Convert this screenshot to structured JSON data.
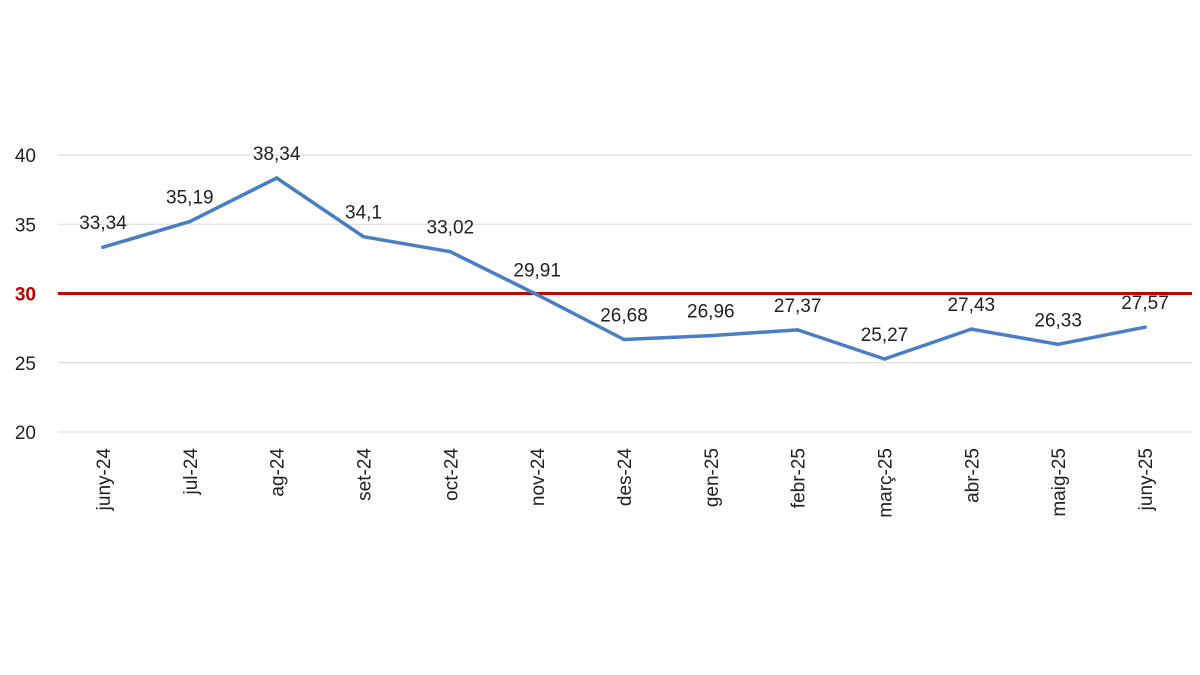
{
  "chart_data": {
    "type": "line",
    "title": "",
    "xlabel": "",
    "ylabel": "",
    "categories": [
      "juny-24",
      "jul-24",
      "ag-24",
      "set-24",
      "oct-24",
      "nov-24",
      "des-24",
      "gen-25",
      "febr-25",
      "març-25",
      "abr-25",
      "maig-25",
      "juny-25"
    ],
    "series": [
      {
        "values": [
          33.34,
          35.19,
          38.34,
          34.1,
          33.02,
          29.91,
          26.68,
          26.96,
          27.37,
          25.27,
          27.43,
          26.33,
          27.57
        ],
        "labels": [
          "33,34",
          "35,19",
          "38,34",
          "34,1",
          "33,02",
          "29,91",
          "26,68",
          "26,96",
          "27,37",
          "25,27",
          "27,43",
          "26,33",
          "27,57"
        ],
        "color": "#4a7ec4"
      }
    ],
    "reference_line": {
      "value": 30,
      "label": "30",
      "color": "#c00000"
    },
    "yticks": [
      "20",
      "25",
      "30",
      "35",
      "40"
    ],
    "ytick_values": [
      20,
      25,
      30,
      35,
      40
    ],
    "ylim": [
      20,
      40
    ],
    "grid": true,
    "legend": "none"
  }
}
